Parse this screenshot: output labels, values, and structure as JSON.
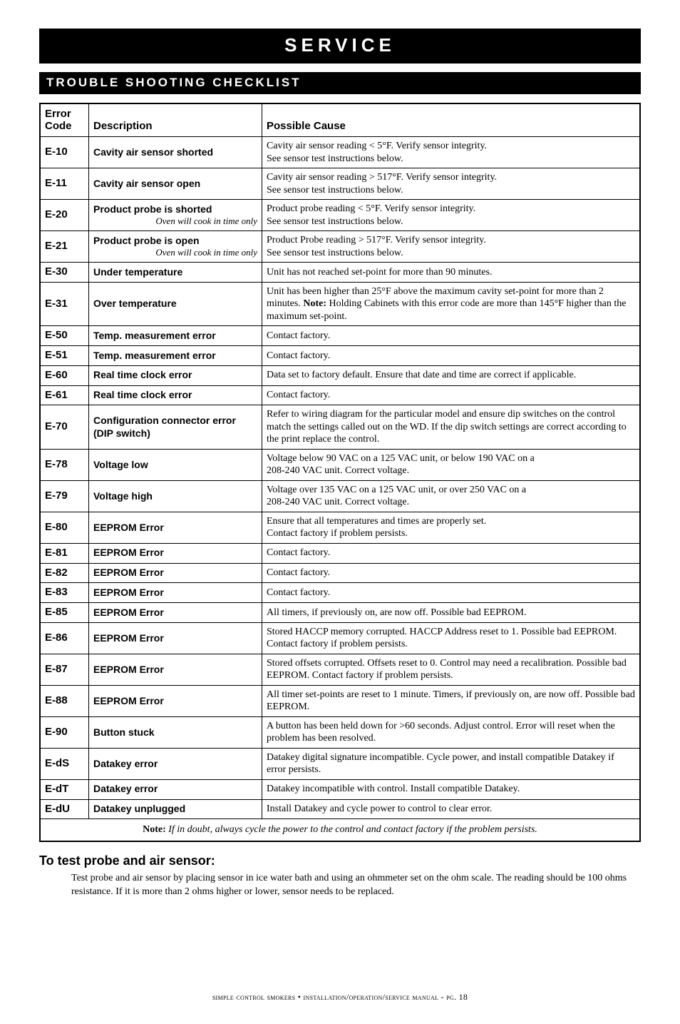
{
  "title": "SERVICE",
  "section": "TROUBLE SHOOTING CHECKLIST",
  "headers": {
    "code": "Error Code",
    "desc": "Description",
    "cause": "Possible Cause"
  },
  "rows": [
    {
      "code": "E-10",
      "desc": "Cavity air sensor shorted",
      "sub": "",
      "cause": "Cavity air sensor reading < 5°F.  Verify sensor integrity.\nSee sensor test instructions below."
    },
    {
      "code": "E-11",
      "desc": "Cavity air sensor open",
      "sub": "",
      "cause": "Cavity air sensor reading > 517°F.  Verify sensor integrity.\nSee sensor test instructions below."
    },
    {
      "code": "E-20",
      "desc": "Product probe is shorted",
      "sub": "Oven will cook in time only",
      "cause": "Product probe reading < 5°F.  Verify sensor integrity.\nSee sensor test instructions below."
    },
    {
      "code": "E-21",
      "desc": "Product probe is open",
      "sub": "Oven will cook in time only",
      "cause": "Product Probe reading > 517°F.  Verify sensor integrity.\nSee sensor test instructions below."
    },
    {
      "code": "E-30",
      "desc": "Under temperature",
      "sub": "",
      "cause": "Unit has not reached set-point for more than 90 minutes."
    },
    {
      "code": "E-31",
      "desc": "Over temperature",
      "sub": "",
      "cause": "Unit has been higher than 25°F above the maximum cavity set-point for more than 2 minutes.  <b>Note:</b> Holding Cabinets with this error code are more than 145°F higher than the maximum set-point."
    },
    {
      "code": "E-50",
      "desc": "Temp. measurement error",
      "sub": "",
      "cause": "Contact factory."
    },
    {
      "code": "E-51",
      "desc": "Temp. measurement error",
      "sub": "",
      "cause": "Contact factory."
    },
    {
      "code": "E-60",
      "desc": "Real time clock error",
      "sub": "",
      "cause": "Data set to factory default.  Ensure that date and time are correct if applicable."
    },
    {
      "code": "E-61",
      "desc": "Real time clock error",
      "sub": "",
      "cause": "Contact factory."
    },
    {
      "code": "E-70",
      "desc": "Configuration connector error (DIP switch)",
      "sub": "",
      "cause": "Refer to wiring diagram for the particular model and ensure dip switches on the control match the settings called out on the WD. If the dip switch settings are correct according to the print replace the control."
    },
    {
      "code": "E-78",
      "desc": "Voltage low",
      "sub": "",
      "cause": "Voltage below 90 VAC on a 125 VAC unit, or below 190 VAC on a\n208-240 VAC unit.  Correct voltage."
    },
    {
      "code": "E-79",
      "desc": "Voltage high",
      "sub": "",
      "cause": "Voltage over 135 VAC on a 125 VAC unit, or over 250 VAC on a\n208-240 VAC unit.  Correct voltage."
    },
    {
      "code": "E-80",
      "desc": "EEPROM Error",
      "sub": "",
      "cause": "Ensure that all temperatures and times are properly set.\nContact factory if problem persists."
    },
    {
      "code": "E-81",
      "desc": "EEPROM Error",
      "sub": "",
      "cause": "Contact factory."
    },
    {
      "code": "E-82",
      "desc": "EEPROM Error",
      "sub": "",
      "cause": "Contact factory."
    },
    {
      "code": "E-83",
      "desc": "EEPROM Error",
      "sub": "",
      "cause": "Contact factory."
    },
    {
      "code": "E-85",
      "desc": "EEPROM Error",
      "sub": "",
      "cause": "All timers, if previously on, are now off.  Possible bad EEPROM."
    },
    {
      "code": "E-86",
      "desc": "EEPROM Error",
      "sub": "",
      "cause": "Stored HACCP memory corrupted. HACCP Address reset to 1.  Possible bad EEPROM.  Contact factory if problem persists."
    },
    {
      "code": "E-87",
      "desc": "EEPROM Error",
      "sub": "",
      "cause": "Stored offsets corrupted. Offsets reset to 0. Control may need a recalibration. Possible bad EEPROM. Contact factory if problem persists."
    },
    {
      "code": "E-88",
      "desc": "EEPROM Error",
      "sub": "",
      "cause": "All timer set-points are reset to 1 minute. Timers, if previously on, are now off.  Possible bad EEPROM."
    },
    {
      "code": "E-90",
      "desc": "Button stuck",
      "sub": "",
      "cause": "A button has been held down for >60 seconds.  Adjust control.  Error will reset when the problem has been resolved."
    },
    {
      "code": "E-dS",
      "desc": "Datakey error",
      "sub": "",
      "cause": "Datakey digital signature incompatible.  Cycle power, and install compatible Datakey if error persists."
    },
    {
      "code": "E-dT",
      "desc": "Datakey error",
      "sub": "",
      "cause": "Datakey incompatible with control.  Install compatible Datakey."
    },
    {
      "code": "E-dU",
      "desc": "Datakey unplugged",
      "sub": "",
      "cause": "Install Datakey and cycle power to control to clear error."
    }
  ],
  "note_label": "Note:",
  "note_body": "If in doubt, always cycle the power to the control and contact factory if the problem persists.",
  "test_heading": "To test probe and air sensor:",
  "test_body": "Test probe and air sensor by placing sensor in ice water bath and using an ohmmeter set on the ohm scale.  The reading should be 100 ohms resistance.  If it is more than 2 ohms higher or lower, sensor needs to be replaced.",
  "footer_prefix": "simple control smokers",
  "footer_mid": " • installation/operation/service manual - pg. ",
  "footer_page": "18"
}
